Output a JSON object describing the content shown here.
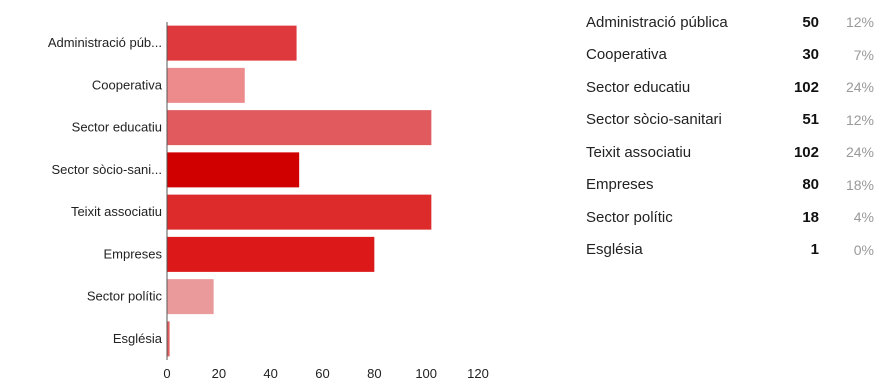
{
  "colors": {
    "bars": [
      "#de3a3d",
      "#ec8a8c",
      "#e05a5e",
      "#d10000",
      "#dd2a2a",
      "#dc1818",
      "#eb9a9c",
      "#e35e60"
    ]
  },
  "chart_data": {
    "type": "bar",
    "orientation": "horizontal",
    "categories": [
      "Administració púb...",
      "Cooperativa",
      "Sector educatiu",
      "Sector sòcio-sani...",
      "Teixit associatiu",
      "Empreses",
      "Sector polític",
      "Església"
    ],
    "values": [
      50,
      30,
      102,
      51,
      102,
      80,
      18,
      1
    ],
    "xlim": [
      0,
      120
    ],
    "xticks": [
      "0",
      "20",
      "40",
      "60",
      "80",
      "100",
      "120"
    ],
    "title": "",
    "xlabel": "",
    "ylabel": "",
    "grid": false
  },
  "summary": {
    "rows": [
      {
        "name": "Administració pública",
        "count": "50",
        "pct": "12%"
      },
      {
        "name": "Cooperativa",
        "count": "30",
        "pct": "7%"
      },
      {
        "name": "Sector educatiu",
        "count": "102",
        "pct": "24%"
      },
      {
        "name": "Sector sòcio-sanitari",
        "count": "51",
        "pct": "12%"
      },
      {
        "name": "Teixit associatiu",
        "count": "102",
        "pct": "24%"
      },
      {
        "name": "Empreses",
        "count": "80",
        "pct": "18%"
      },
      {
        "name": "Sector polític",
        "count": "18",
        "pct": "4%"
      },
      {
        "name": "Església",
        "count": "1",
        "pct": "0%"
      }
    ]
  }
}
